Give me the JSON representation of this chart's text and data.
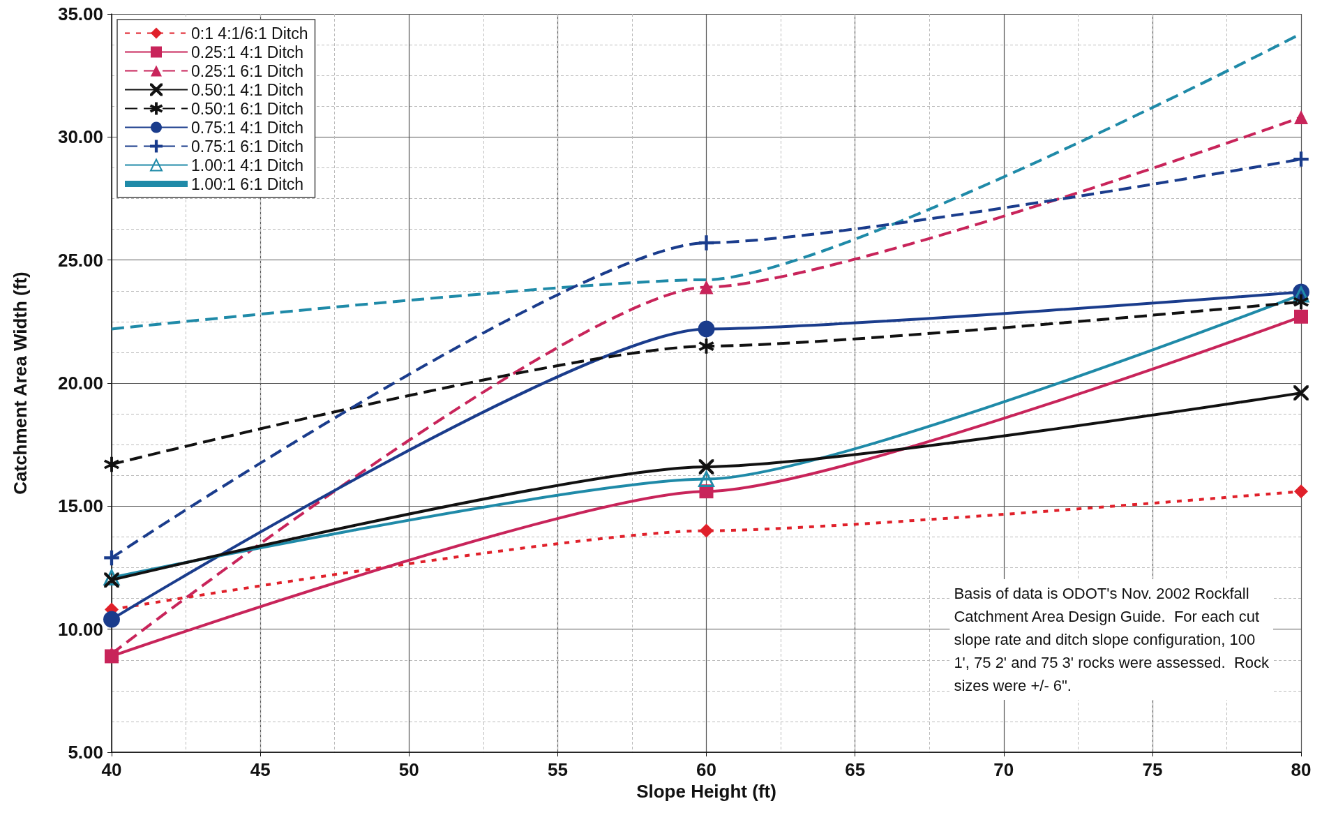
{
  "chart_data": {
    "type": "line",
    "xlabel": "Slope Height (ft)",
    "ylabel": "Catchment Area Width (ft)",
    "x": [
      40,
      60,
      80
    ],
    "series": [
      {
        "name": "0:1 4:1/6:1 Ditch",
        "color": "#e0202a",
        "marker": "diamond",
        "line_style": "dotted",
        "values": [
          10.8,
          14.0,
          15.6
        ]
      },
      {
        "name": "0.25:1 4:1 Ditch",
        "color": "#c8245a",
        "marker": "square",
        "line_style": "solid",
        "values": [
          8.9,
          15.6,
          22.7
        ]
      },
      {
        "name": "0.25:1 6:1 Ditch",
        "color": "#c8245a",
        "marker": "triangle",
        "line_style": "dashed",
        "values": [
          9.0,
          23.9,
          30.8
        ]
      },
      {
        "name": "0.50:1 4:1 Ditch",
        "color": "#111111",
        "marker": "cross",
        "line_style": "solid",
        "values": [
          12.0,
          16.6,
          19.6
        ]
      },
      {
        "name": "0.50:1 6:1 Ditch",
        "color": "#111111",
        "marker": "star",
        "line_style": "dashed",
        "values": [
          16.7,
          21.5,
          23.3
        ]
      },
      {
        "name": "0.75:1 4:1 Ditch",
        "color": "#1a3c8c",
        "marker": "circle",
        "line_style": "solid",
        "values": [
          10.4,
          22.2,
          23.7
        ]
      },
      {
        "name": "0.75:1 6:1 Ditch",
        "color": "#1a3c8c",
        "marker": "plus",
        "line_style": "dashed",
        "values": [
          12.9,
          25.7,
          29.1
        ]
      },
      {
        "name": "1.00:1 4:1 Ditch",
        "color": "#1f8aa8",
        "marker": "triangle",
        "line_style": "solid",
        "values": [
          12.1,
          16.1,
          23.6
        ]
      },
      {
        "name": "1.00:1 6:1 Ditch",
        "color": "#1f8aa8",
        "marker": "none",
        "line_style": "dashed",
        "values": [
          22.2,
          24.2,
          34.2
        ]
      }
    ],
    "xlim": [
      40,
      80
    ],
    "xticks": [
      40,
      45,
      50,
      55,
      60,
      65,
      70,
      75,
      80
    ],
    "ylim": [
      5,
      35
    ],
    "yticks": [
      {
        "value": 5,
        "label": "5.00"
      },
      {
        "value": 10,
        "label": "10.00"
      },
      {
        "value": 15,
        "label": "15.00"
      },
      {
        "value": 20,
        "label": "20.00"
      },
      {
        "value": 25,
        "label": "25.00"
      },
      {
        "value": 30,
        "label": "30.00"
      },
      {
        "value": 35,
        "label": "35.00"
      }
    ],
    "grid": true,
    "legend": "top left",
    "annotations": [
      "Basis of data is ODOT's Nov. 2002 Rockfall\nCatchment Area Design Guide.  For each cut\nslope rate and ditch slope configuration, 100\n1', 75 2' and 75 3' rocks were assessed.  Rock\nsizes were +/- 6\"."
    ]
  }
}
